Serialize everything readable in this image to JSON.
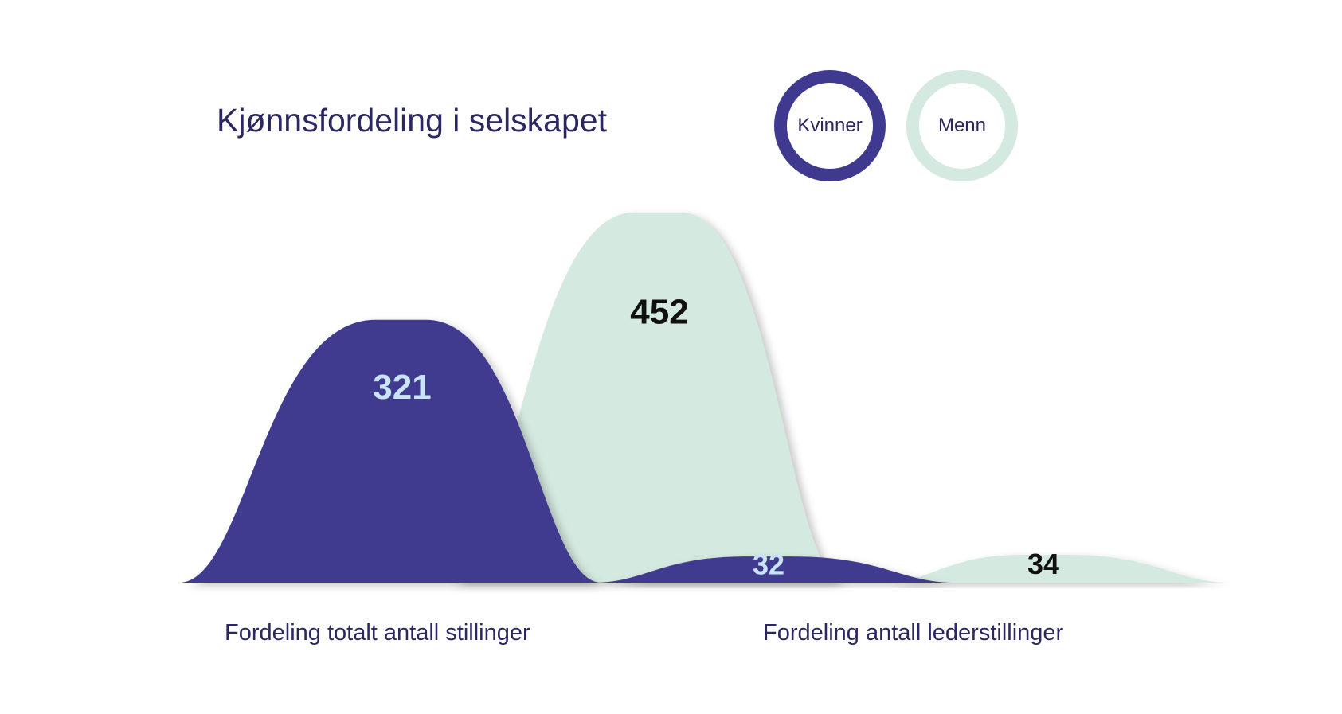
{
  "chart_data": {
    "type": "area",
    "title": "Kjønnsfordeling i selskapet",
    "legend": [
      {
        "name": "Kvinner",
        "color": "#3f3a8f",
        "style": "ring"
      },
      {
        "name": "Menn",
        "color": "#d4e9df",
        "style": "ring"
      }
    ],
    "categories": [
      "Fordeling totalt antall stillinger",
      "Fordeling antall lederstillinger"
    ],
    "series": [
      {
        "name": "Kvinner",
        "values": [
          321,
          32
        ],
        "fill": "#3f3a8f",
        "label_color": "#c9e4f6"
      },
      {
        "name": "Menn",
        "values": [
          452,
          34
        ],
        "fill": "#d4e9df",
        "label_color": "#111111"
      }
    ],
    "ylim": [
      0,
      452
    ],
    "xlabel": "",
    "ylabel": "",
    "grid": false,
    "legend_position": "top-right"
  }
}
